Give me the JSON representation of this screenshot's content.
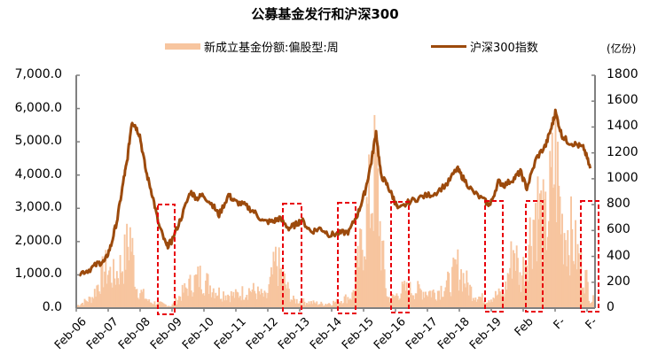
{
  "chart_data": {
    "type": "bar+line",
    "title": "公募基金发行和沪深300",
    "legend": [
      {
        "label": "新成立基金份额:偏股型:周",
        "type": "bar",
        "color": "#F7C59F",
        "axis": "right"
      },
      {
        "label": "沪深300指数",
        "type": "line",
        "color": "#9C4A0C",
        "axis": "left"
      }
    ],
    "left_axis": {
      "ticks": [
        "0.0",
        "1,000.0",
        "2,000.0",
        "3,000.0",
        "4,000.0",
        "5,000.0",
        "6,000.0",
        "7,000.0"
      ],
      "range": [
        0,
        7000
      ]
    },
    "right_axis": {
      "unit": "(亿份)",
      "ticks": [
        "0",
        "200",
        "400",
        "600",
        "800",
        "1000",
        "1200",
        "1400",
        "1600",
        "1800"
      ],
      "range": [
        0,
        1800
      ]
    },
    "x_axis": {
      "tick_labels": [
        "Feb-06",
        "Feb-07",
        "Feb-08",
        "Feb-09",
        "Feb-10",
        "Feb-11",
        "Feb-12",
        "Feb-13",
        "Feb-14",
        "Feb-15",
        "Feb-16",
        "Feb-17",
        "Feb-18",
        "Feb-19",
        "Feb",
        "F-",
        "F-"
      ]
    },
    "line_series": {
      "name": "沪深300指数",
      "x": [
        2006.1,
        2006.4,
        2006.7,
        2006.9,
        2007.1,
        2007.3,
        2007.5,
        2007.6,
        2007.75,
        2007.85,
        2008.0,
        2008.2,
        2008.4,
        2008.6,
        2008.85,
        2009.0,
        2009.3,
        2009.6,
        2009.8,
        2010.0,
        2010.3,
        2010.5,
        2010.8,
        2011.0,
        2011.3,
        2011.6,
        2011.9,
        2012.2,
        2012.4,
        2012.7,
        2012.9,
        2013.1,
        2013.4,
        2013.7,
        2014.0,
        2014.3,
        2014.6,
        2014.9,
        2015.1,
        2015.3,
        2015.45,
        2015.6,
        2015.8,
        2016.0,
        2016.15,
        2016.5,
        2016.9,
        2017.3,
        2017.7,
        2018.0,
        2018.2,
        2018.5,
        2018.9,
        2019.05,
        2019.3,
        2019.5,
        2019.8,
        2020.0,
        2020.2,
        2020.5,
        2020.8,
        2021.0,
        2021.1,
        2021.3,
        2021.5,
        2021.8,
        2022.0,
        2022.2
      ],
      "values": [
        1050,
        1150,
        1350,
        1400,
        1900,
        2700,
        3900,
        4400,
        5600,
        5500,
        5200,
        4100,
        3400,
        2500,
        1850,
        2000,
        2700,
        3500,
        3300,
        3400,
        3100,
        2800,
        3400,
        3200,
        3100,
        2900,
        2600,
        2600,
        2700,
        2400,
        2500,
        2650,
        2300,
        2400,
        2200,
        2250,
        2300,
        2900,
        3500,
        4400,
        5300,
        4000,
        3700,
        3300,
        2950,
        3200,
        3350,
        3450,
        3750,
        4200,
        3900,
        3500,
        3200,
        3100,
        3800,
        3700,
        3900,
        4100,
        3600,
        4500,
        4900,
        5500,
        5900,
        5200,
        5000,
        4900,
        4800,
        4200
      ]
    },
    "bar_series": {
      "name": "新成立基金份额:偏股型:周",
      "note": "weekly bars, approximate envelope",
      "x": [
        2006.0,
        2006.5,
        2006.9,
        2007.2,
        2007.5,
        2007.7,
        2007.9,
        2008.3,
        2008.7,
        2009.0,
        2009.5,
        2009.9,
        2010.5,
        2011.0,
        2011.5,
        2012.0,
        2012.3,
        2012.8,
        2013.2,
        2013.8,
        2014.2,
        2014.7,
        2015.0,
        2015.3,
        2015.45,
        2015.6,
        2015.8,
        2016.0,
        2016.3,
        2016.8,
        2017.3,
        2017.8,
        2018.0,
        2018.5,
        2018.9,
        2019.2,
        2019.5,
        2019.8,
        2020.0,
        2020.3,
        2020.5,
        2020.8,
        2021.0,
        2021.1,
        2021.3,
        2021.6,
        2021.9,
        2022.1,
        2022.2
      ],
      "values": [
        20,
        100,
        380,
        300,
        450,
        700,
        200,
        60,
        40,
        20,
        200,
        300,
        150,
        120,
        180,
        100,
        450,
        80,
        60,
        40,
        60,
        120,
        600,
        1100,
        1350,
        650,
        100,
        100,
        180,
        170,
        150,
        250,
        400,
        140,
        80,
        120,
        150,
        600,
        250,
        700,
        1000,
        750,
        1200,
        1450,
        800,
        700,
        400,
        250,
        80
      ]
    },
    "annotations": [
      {
        "type": "dashed-red-box",
        "near": "Feb-09"
      },
      {
        "type": "dashed-red-box",
        "near": "Feb-13"
      },
      {
        "type": "dashed-red-box",
        "near": "Feb-14"
      },
      {
        "type": "dashed-red-box",
        "near": "Feb-16"
      },
      {
        "type": "dashed-red-box",
        "near": "Feb-19"
      },
      {
        "type": "dashed-red-box",
        "near": "Feb-20/21"
      },
      {
        "type": "dashed-red-box",
        "near": "end (2022)"
      }
    ],
    "layout": {
      "grid": false,
      "legend_position": "top"
    }
  },
  "colors": {
    "bar": "#F7C59F",
    "line": "#9C4A0C",
    "axis": "#808080",
    "annotation": "#E8000B"
  }
}
